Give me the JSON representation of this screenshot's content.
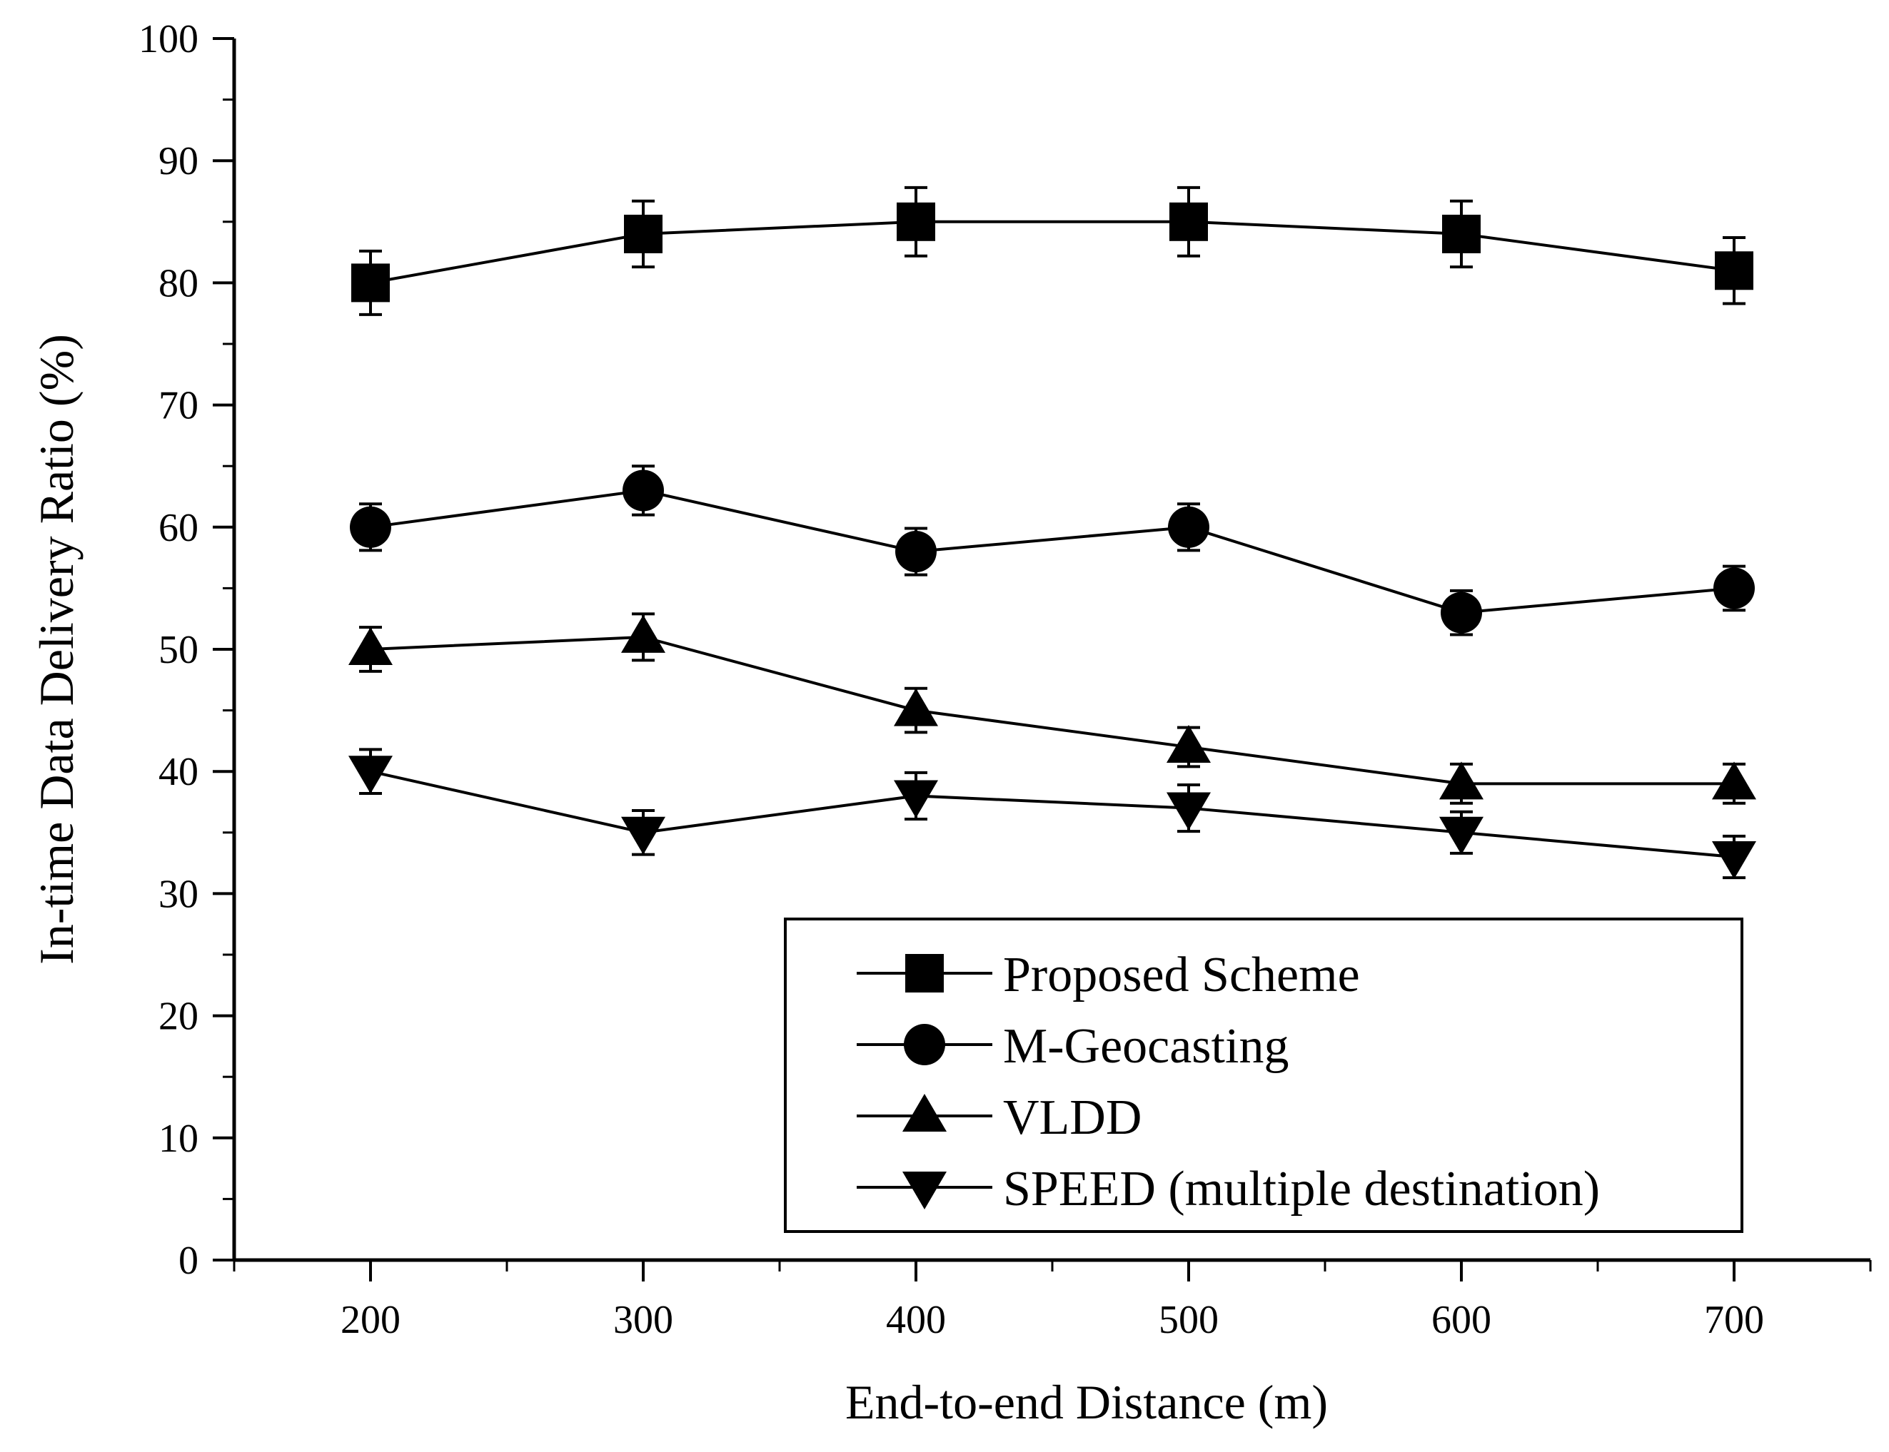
{
  "chart_data": {
    "type": "line",
    "title": "",
    "xlabel": "End-to-end Distance (m)",
    "ylabel": "In-time Data Delivery Ratio (%)",
    "x": [
      200,
      300,
      400,
      500,
      600,
      700
    ],
    "xlim": [
      150,
      750
    ],
    "ylim": [
      0,
      100
    ],
    "x_ticks": [
      "200",
      "300",
      "400",
      "500",
      "600",
      "700"
    ],
    "y_ticks": [
      "0",
      "10",
      "20",
      "30",
      "40",
      "50",
      "60",
      "70",
      "80",
      "90",
      "100"
    ],
    "legend_position": "bottom-right",
    "series": [
      {
        "name": "Proposed Scheme",
        "marker": "square",
        "values": [
          80,
          84,
          85,
          85,
          84,
          81
        ],
        "error": [
          2.6,
          2.7,
          2.8,
          2.8,
          2.7,
          2.7
        ]
      },
      {
        "name": "M-Geocasting",
        "marker": "circle",
        "values": [
          60,
          63,
          58,
          60,
          53,
          55
        ],
        "error": [
          1.9,
          2.0,
          1.9,
          1.9,
          1.8,
          1.8
        ]
      },
      {
        "name": "VLDD",
        "marker": "triangle-up",
        "values": [
          50,
          51,
          45,
          42,
          39,
          39
        ],
        "error": [
          1.8,
          1.9,
          1.8,
          1.6,
          1.6,
          1.6
        ]
      },
      {
        "name": "SPEED (multiple destination)",
        "marker": "triangle-down",
        "values": [
          40,
          35,
          38,
          37,
          35,
          33
        ],
        "error": [
          1.8,
          1.8,
          1.9,
          1.9,
          1.7,
          1.7
        ]
      }
    ],
    "colors": {
      "line": "#000000",
      "marker": "#000000",
      "background": "#ffffff"
    }
  }
}
